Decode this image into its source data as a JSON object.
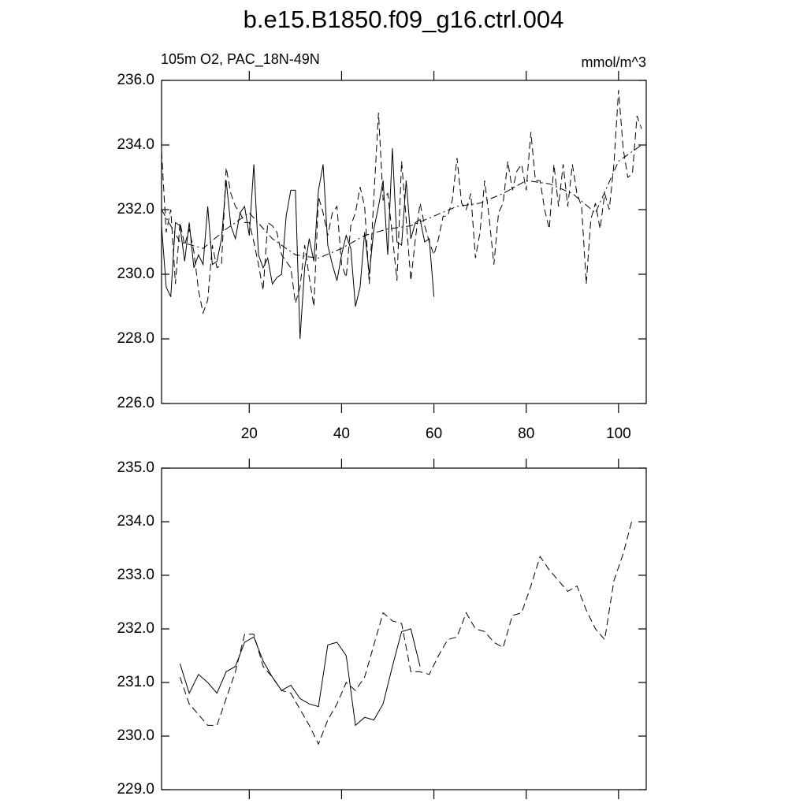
{
  "chart_data": [
    {
      "type": "line",
      "title": "b.e15.B1850.f09_g16.ctrl.004",
      "subtitle_left": "105m O2, PAC_18N-49N",
      "subtitle_right": "mmol/m^3",
      "x": [
        1,
        2,
        3,
        4,
        5,
        6,
        7,
        8,
        9,
        10,
        11,
        12,
        13,
        14,
        15,
        16,
        17,
        18,
        19,
        20,
        21,
        22,
        23,
        24,
        25,
        26,
        27,
        28,
        29,
        30,
        31,
        32,
        33,
        34,
        35,
        36,
        37,
        38,
        39,
        40,
        41,
        42,
        43,
        44,
        45,
        46,
        47,
        48,
        49,
        50,
        51,
        52,
        53,
        54,
        55,
        56,
        57,
        58,
        59,
        60,
        61,
        62,
        63,
        64,
        65,
        66,
        67,
        68,
        69,
        70,
        71,
        72,
        73,
        74,
        75,
        76,
        77,
        78,
        79,
        80,
        81,
        82,
        83,
        84,
        85,
        86,
        87,
        88,
        89,
        90,
        91,
        92,
        93,
        94,
        95,
        96,
        97,
        98,
        99,
        100,
        101,
        102,
        103,
        104,
        105
      ],
      "series": [
        {
          "color": "#000000",
          "linestyle": "solid",
          "values": [
            231.5,
            229.6,
            229.3,
            231.6,
            231.5,
            230.4,
            231.6,
            230.2,
            230.6,
            230.3,
            232.1,
            230.3,
            230.4,
            231.1,
            232.9,
            231.5,
            231.1,
            231.9,
            232.1,
            231.2,
            233.4,
            230.6,
            230.2,
            230.5,
            229.7,
            229.9,
            230.0,
            231.8,
            232.6,
            232.6,
            228.0,
            230.2,
            231.1,
            230.4,
            232.6,
            233.4,
            230.9,
            230.3,
            229.8,
            230.6,
            231.2,
            230.8,
            229.0,
            229.6,
            231.3,
            230.0,
            231.4,
            232.1,
            232.9,
            230.6,
            233.9,
            231.0,
            230.9,
            232.9,
            231.1,
            231.6,
            231.7,
            231.0,
            231.1,
            229.3,
            null,
            null,
            null,
            null,
            null,
            null,
            null,
            null,
            null,
            null,
            null,
            null,
            null,
            null,
            null,
            null,
            null,
            null,
            null,
            null,
            null,
            null,
            null,
            null,
            null,
            null,
            null,
            null,
            null,
            null,
            null,
            null,
            null,
            null,
            null,
            null,
            null,
            null,
            null,
            null,
            null,
            null,
            null,
            null,
            null
          ]
        },
        {
          "color": "#000000",
          "linestyle": "dashed",
          "values": [
            233.8,
            231.3,
            232.0,
            229.7,
            231.6,
            230.9,
            231.4,
            230.7,
            229.5,
            228.8,
            229.2,
            230.9,
            230.2,
            230.3,
            233.3,
            232.5,
            232.1,
            231.9,
            231.6,
            231.6,
            231.0,
            230.3,
            229.5,
            231.6,
            231.5,
            231.3,
            230.6,
            230.4,
            230.2,
            229.1,
            229.6,
            230.9,
            229.9,
            229.0,
            232.4,
            231.9,
            231.2,
            231.9,
            232.1,
            230.3,
            229.9,
            231.5,
            231.9,
            232.7,
            232.1,
            229.7,
            232.4,
            235.0,
            232.3,
            232.5,
            231.2,
            229.8,
            233.5,
            231.7,
            229.8,
            231.1,
            232.2,
            231.5,
            231.0,
            230.6,
            231.1,
            231.8,
            231.8,
            232.3,
            233.6,
            232.2,
            232.0,
            232.5,
            230.5,
            231.3,
            232.9,
            231.7,
            230.3,
            231.9,
            232.2,
            233.5,
            232.6,
            233.2,
            233.4,
            232.6,
            234.4,
            232.9,
            232.9,
            232.0,
            231.4,
            233.4,
            232.1,
            233.4,
            232.1,
            233.4,
            232.5,
            232.1,
            229.7,
            231.7,
            232.2,
            231.4,
            232.5,
            232.0,
            233.4,
            235.7,
            233.9,
            233.0,
            233.1,
            234.9,
            234.5
          ]
        },
        {
          "color": "#000000",
          "linestyle": "dashdot",
          "x": [
            1,
            5,
            10,
            15,
            20,
            25,
            30,
            35,
            40,
            45,
            50,
            55,
            60,
            65,
            70,
            75,
            80,
            85,
            90,
            95,
            100,
            105
          ],
          "values": [
            232.0,
            231.0,
            230.8,
            231.4,
            231.9,
            231.1,
            230.6,
            230.5,
            230.8,
            231.2,
            231.4,
            231.5,
            231.8,
            232.1,
            232.2,
            232.5,
            232.9,
            232.8,
            232.5,
            231.9,
            233.5,
            234.0
          ]
        }
      ],
      "xlim": [
        1,
        106
      ],
      "ylim": [
        226,
        236
      ],
      "xticks": [
        20,
        40,
        60,
        80,
        100
      ],
      "yticks": [
        {
          "value": 226,
          "label": "226.0"
        },
        {
          "value": 228,
          "label": "228.0"
        },
        {
          "value": 230,
          "label": "230.0"
        },
        {
          "value": 232,
          "label": "232.0"
        },
        {
          "value": 234,
          "label": "234.0"
        },
        {
          "value": 236,
          "label": "236.0"
        }
      ]
    },
    {
      "type": "line",
      "series": [
        {
          "color": "#000000",
          "linestyle": "solid",
          "x": [
            5,
            7,
            9,
            11,
            13,
            15,
            17,
            19,
            21,
            23,
            25,
            27,
            29,
            31,
            33,
            35,
            37,
            39,
            41,
            43,
            45,
            47,
            49,
            51,
            53,
            55,
            57
          ],
          "values": [
            231.35,
            230.8,
            231.15,
            231.0,
            230.8,
            231.2,
            231.3,
            231.75,
            231.85,
            231.4,
            231.1,
            230.85,
            230.95,
            230.7,
            230.6,
            230.55,
            231.7,
            231.75,
            231.5,
            230.2,
            230.35,
            230.3,
            230.6,
            231.3,
            231.95,
            232.0,
            231.3
          ]
        },
        {
          "color": "#000000",
          "linestyle": "dashed",
          "x": [
            5,
            7,
            9,
            11,
            13,
            15,
            17,
            19,
            21,
            23,
            25,
            27,
            29,
            31,
            33,
            35,
            37,
            39,
            41,
            43,
            45,
            47,
            49,
            51,
            53,
            55,
            57,
            59,
            61,
            63,
            65,
            67,
            69,
            71,
            73,
            75,
            77,
            79,
            81,
            83,
            85,
            87,
            89,
            91,
            93,
            95,
            97,
            99,
            101,
            103
          ],
          "values": [
            231.1,
            230.6,
            230.4,
            230.2,
            230.2,
            230.7,
            231.2,
            231.9,
            231.9,
            231.3,
            231.1,
            230.85,
            230.8,
            230.5,
            230.2,
            229.85,
            230.3,
            230.6,
            231.0,
            230.85,
            231.1,
            231.7,
            232.3,
            232.15,
            232.1,
            231.2,
            231.2,
            231.15,
            231.5,
            231.8,
            231.85,
            232.3,
            232.0,
            231.95,
            231.75,
            231.65,
            232.25,
            232.3,
            232.8,
            233.35,
            233.1,
            232.9,
            232.7,
            232.8,
            232.35,
            232.0,
            231.8,
            232.9,
            233.4,
            234.05
          ]
        }
      ],
      "xlim": [
        1,
        106
      ],
      "ylim": [
        229,
        235
      ],
      "yticks": [
        {
          "value": 229,
          "label": "229.0"
        },
        {
          "value": 230,
          "label": "230.0"
        },
        {
          "value": 231,
          "label": "231.0"
        },
        {
          "value": 232,
          "label": "232.0"
        },
        {
          "value": 233,
          "label": "233.0"
        },
        {
          "value": 234,
          "label": "234.0"
        },
        {
          "value": 235,
          "label": "235.0"
        }
      ]
    }
  ]
}
